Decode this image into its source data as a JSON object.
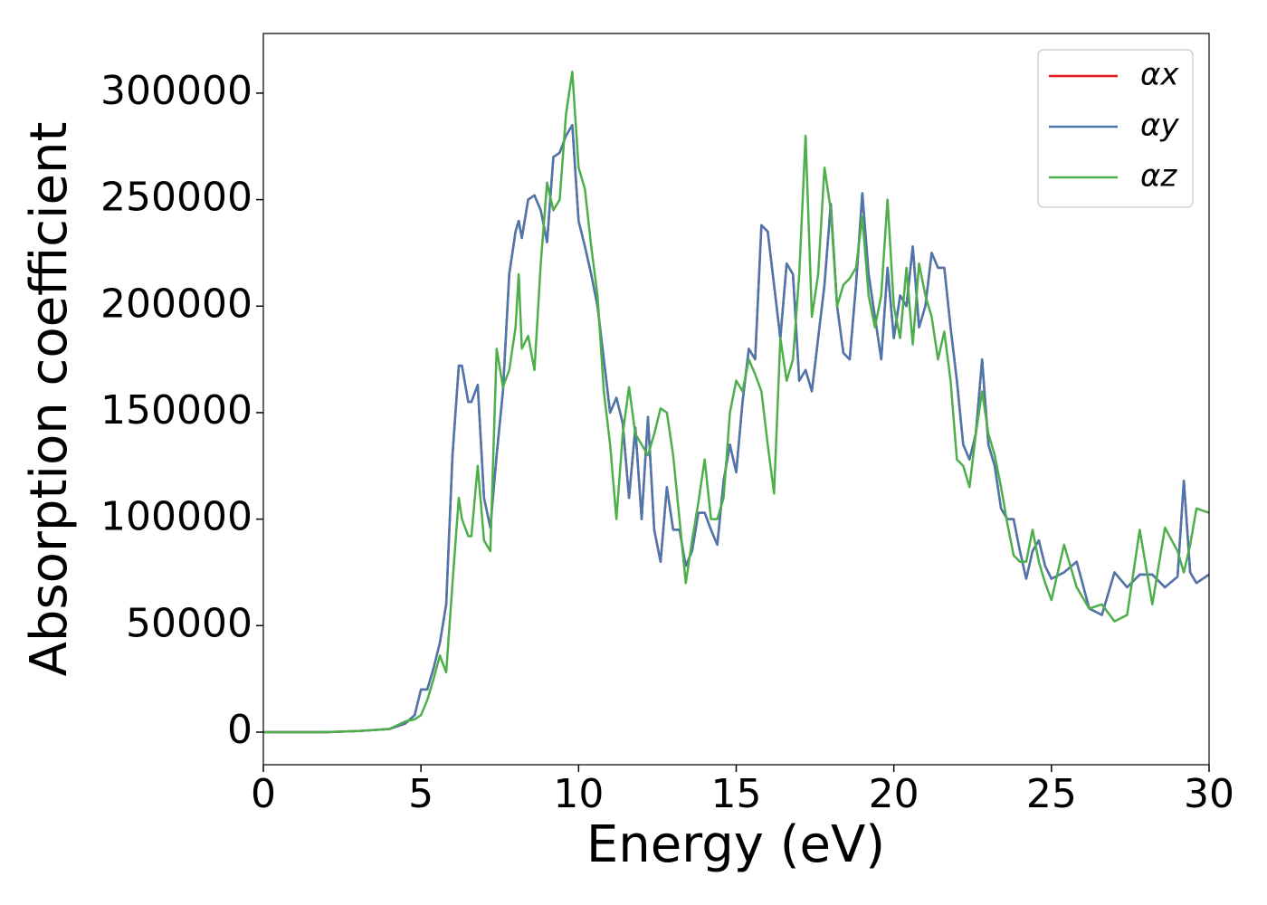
{
  "chart_data": {
    "type": "line",
    "xlabel": "Energy (eV)",
    "ylabel": "Absorption coefficient",
    "x": [
      0,
      1,
      2,
      3,
      4,
      4.5,
      4.8,
      5,
      5.2,
      5.4,
      5.6,
      5.8,
      6,
      6.2,
      6.3,
      6.5,
      6.6,
      6.8,
      7,
      7.2,
      7.4,
      7.6,
      7.8,
      8,
      8.1,
      8.2,
      8.4,
      8.6,
      8.8,
      9,
      9.2,
      9.4,
      9.6,
      9.8,
      10,
      10.2,
      10.4,
      10.6,
      10.8,
      11,
      11.2,
      11.4,
      11.6,
      11.8,
      12,
      12.2,
      12.4,
      12.6,
      12.8,
      13,
      13.2,
      13.4,
      13.6,
      13.8,
      14,
      14.2,
      14.4,
      14.6,
      14.8,
      15,
      15.2,
      15.4,
      15.6,
      15.8,
      16,
      16.2,
      16.4,
      16.6,
      16.8,
      17,
      17.2,
      17.4,
      17.6,
      17.8,
      18,
      18.2,
      18.4,
      18.6,
      18.8,
      19,
      19.2,
      19.4,
      19.6,
      19.8,
      20,
      20.2,
      20.4,
      20.6,
      20.8,
      21,
      21.2,
      21.4,
      21.6,
      21.8,
      22,
      22.2,
      22.4,
      22.6,
      22.8,
      23,
      23.2,
      23.4,
      23.6,
      23.8,
      24,
      24.2,
      24.4,
      24.6,
      24.8,
      25,
      25.4,
      25.8,
      26.2,
      26.6,
      27,
      27.4,
      27.8,
      28.2,
      28.6,
      29,
      29.2,
      29.4,
      29.6,
      30
    ],
    "series": [
      {
        "name": "αx",
        "color": "#e41a1c",
        "values": [
          0,
          0,
          0,
          500,
          1500,
          4000,
          8000,
          20000,
          20000,
          30000,
          42000,
          60000,
          130000,
          172000,
          172000,
          155000,
          155000,
          163000,
          110000,
          96000,
          130000,
          160000,
          215000,
          235000,
          240000,
          232000,
          250000,
          252000,
          245000,
          230000,
          270000,
          272000,
          280000,
          285000,
          240000,
          228000,
          215000,
          200000,
          175000,
          150000,
          157000,
          145000,
          110000,
          143000,
          100000,
          148000,
          95000,
          80000,
          115000,
          95000,
          95000,
          78000,
          85000,
          103000,
          103000,
          95000,
          88000,
          118000,
          135000,
          122000,
          155000,
          180000,
          175000,
          238000,
          235000,
          210000,
          185000,
          220000,
          215000,
          165000,
          170000,
          160000,
          185000,
          210000,
          248000,
          200000,
          178000,
          175000,
          210000,
          253000,
          215000,
          195000,
          175000,
          218000,
          185000,
          205000,
          200000,
          228000,
          190000,
          200000,
          225000,
          218000,
          218000,
          190000,
          165000,
          135000,
          128000,
          140000,
          175000,
          135000,
          125000,
          105000,
          100000,
          100000,
          85000,
          72000,
          85000,
          90000,
          78000,
          72000,
          75000,
          80000,
          58000,
          55000,
          75000,
          68000,
          74000,
          74000,
          68000,
          73000,
          118000,
          75000,
          70000,
          74000
        ]
      },
      {
        "name": "αy",
        "color": "#4a77ad",
        "values": [
          0,
          0,
          0,
          500,
          1500,
          4000,
          8000,
          20000,
          20000,
          30000,
          42000,
          60000,
          130000,
          172000,
          172000,
          155000,
          155000,
          163000,
          110000,
          96000,
          130000,
          160000,
          215000,
          235000,
          240000,
          232000,
          250000,
          252000,
          245000,
          230000,
          270000,
          272000,
          280000,
          285000,
          240000,
          228000,
          215000,
          200000,
          175000,
          150000,
          157000,
          145000,
          110000,
          143000,
          100000,
          148000,
          95000,
          80000,
          115000,
          95000,
          95000,
          78000,
          85000,
          103000,
          103000,
          95000,
          88000,
          118000,
          135000,
          122000,
          155000,
          180000,
          175000,
          238000,
          235000,
          210000,
          185000,
          220000,
          215000,
          165000,
          170000,
          160000,
          185000,
          210000,
          248000,
          200000,
          178000,
          175000,
          210000,
          253000,
          215000,
          195000,
          175000,
          218000,
          185000,
          205000,
          200000,
          228000,
          190000,
          200000,
          225000,
          218000,
          218000,
          190000,
          165000,
          135000,
          128000,
          140000,
          175000,
          135000,
          125000,
          105000,
          100000,
          100000,
          85000,
          72000,
          85000,
          90000,
          78000,
          72000,
          75000,
          80000,
          58000,
          55000,
          75000,
          68000,
          74000,
          74000,
          68000,
          73000,
          118000,
          75000,
          70000,
          74000
        ]
      },
      {
        "name": "αz",
        "color": "#4daf4a",
        "values": [
          0,
          0,
          0,
          500,
          1500,
          5000,
          6000,
          8000,
          15000,
          25000,
          36000,
          28000,
          70000,
          110000,
          100000,
          92000,
          92000,
          125000,
          90000,
          85000,
          180000,
          162000,
          170000,
          190000,
          215000,
          180000,
          186000,
          170000,
          220000,
          258000,
          245000,
          250000,
          290000,
          310000,
          265000,
          255000,
          228000,
          205000,
          160000,
          135000,
          100000,
          140000,
          162000,
          140000,
          135000,
          130000,
          140000,
          152000,
          150000,
          130000,
          100000,
          70000,
          90000,
          108000,
          128000,
          100000,
          100000,
          110000,
          150000,
          165000,
          160000,
          175000,
          168000,
          160000,
          135000,
          112000,
          185000,
          165000,
          175000,
          215000,
          280000,
          195000,
          215000,
          265000,
          245000,
          200000,
          210000,
          213000,
          218000,
          242000,
          205000,
          190000,
          205000,
          250000,
          200000,
          185000,
          218000,
          182000,
          220000,
          205000,
          195000,
          175000,
          188000,
          165000,
          128000,
          125000,
          115000,
          140000,
          160000,
          140000,
          130000,
          115000,
          98000,
          83000,
          80000,
          80000,
          95000,
          80000,
          70000,
          62000,
          88000,
          68000,
          58000,
          60000,
          52000,
          55000,
          95000,
          60000,
          96000,
          85000,
          75000,
          88000,
          105000,
          103000
        ]
      }
    ],
    "xlim": [
      0,
      30
    ],
    "xticks": [
      0,
      5,
      10,
      15,
      20,
      25,
      30
    ],
    "ylim": [
      -15300,
      328000
    ],
    "yticks": [
      0,
      50000,
      100000,
      150000,
      200000,
      250000,
      300000
    ],
    "grid": false,
    "legend": "upper right"
  }
}
